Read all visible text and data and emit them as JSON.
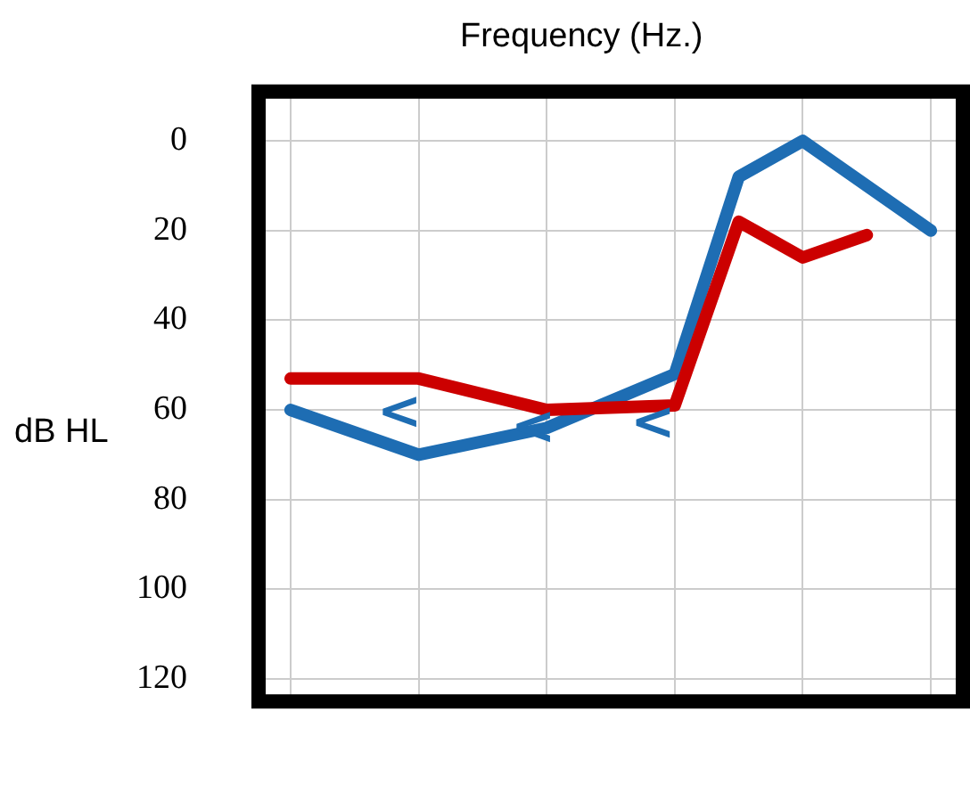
{
  "chart_data": {
    "type": "line",
    "xlabel": "Frequency (Hz.)",
    "ylabel": "dB HL",
    "categories": [
      null,
      null,
      null,
      null,
      null,
      null,
      null,
      null,
      null,
      null,
      null
    ],
    "series": [
      {
        "color": "#cc0000",
        "values": [
          53,
          null,
          53,
          null,
          60,
          null,
          59,
          18,
          26,
          21,
          null
        ]
      },
      {
        "color": "#1e6db3",
        "values": [
          60,
          null,
          70,
          null,
          64,
          null,
          52,
          8,
          0,
          null,
          20
        ]
      }
    ],
    "ylim": [
      125,
      -11
    ],
    "yticks": [
      0,
      20,
      40,
      60,
      80,
      100,
      120
    ],
    "tick_labels": "y",
    "grid": true,
    "marker": "none",
    "line_style": "solid",
    "annotations": [
      "<",
      "<",
      "<"
    ]
  }
}
